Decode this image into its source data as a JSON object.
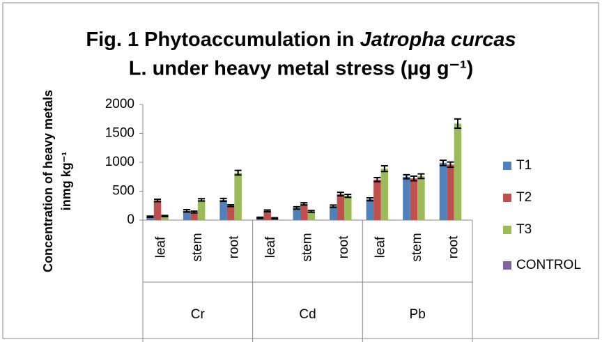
{
  "chart_data": {
    "type": "bar",
    "title": [
      "Fig. 1 Phytoaccumulation in ",
      "Jatropha curcas",
      "L. under heavy metal stress (µg g⁻¹)"
    ],
    "y_label": [
      "Concentration of heavy metals",
      "inmg kg⁻¹"
    ],
    "categories": [
      "leaf",
      "stem",
      "root",
      "leaf",
      "stem",
      "root",
      "leaf",
      "stem",
      "root"
    ],
    "groups": [
      "Cr",
      "Cd",
      "Pb"
    ],
    "series": [
      {
        "name": "T1",
        "color": "#4f81bd",
        "values": [
          60,
          160,
          350,
          40,
          210,
          240,
          360,
          750,
          990
        ],
        "errors": [
          10,
          20,
          25,
          10,
          20,
          20,
          25,
          35,
          45
        ]
      },
      {
        "name": "T2",
        "color": "#c0504d",
        "values": [
          340,
          140,
          250,
          160,
          280,
          450,
          700,
          720,
          960
        ],
        "errors": [
          20,
          15,
          15,
          15,
          20,
          30,
          35,
          40,
          45
        ]
      },
      {
        "name": "T3",
        "color": "#9bbb59",
        "values": [
          70,
          350,
          820,
          30,
          150,
          420,
          890,
          760,
          1670
        ],
        "errors": [
          10,
          20,
          40,
          10,
          15,
          25,
          50,
          40,
          80
        ]
      },
      {
        "name": "CONTROL",
        "color": "#8064a2",
        "values": [
          5,
          5,
          5,
          5,
          5,
          5,
          5,
          5,
          5
        ],
        "errors": [
          0,
          0,
          0,
          0,
          0,
          0,
          0,
          0,
          0
        ]
      }
    ],
    "ylim": [
      0,
      2000
    ],
    "yticks": [
      0,
      500,
      1000,
      1500,
      2000
    ],
    "grid": false,
    "legend": "right"
  }
}
